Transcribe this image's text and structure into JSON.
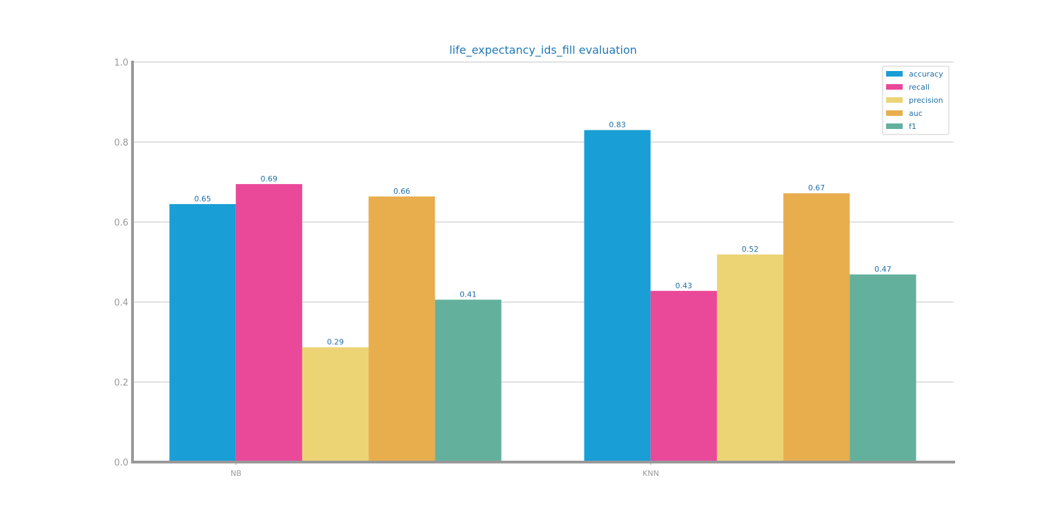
{
  "chart_data": {
    "type": "bar",
    "title": "life_expectancy_ids_fill evaluation",
    "xlabel": "",
    "ylabel": "",
    "categories": [
      "NB",
      "KNN"
    ],
    "ylim": [
      0,
      1.0
    ],
    "yticks": [
      "0.0",
      "0.2",
      "0.4",
      "0.6",
      "0.8",
      "1.0"
    ],
    "grid": "horizontal",
    "legend_position": "top-right",
    "series": [
      {
        "name": "accuracy",
        "color": "#1a9ed6",
        "values": [
          0.645,
          0.83
        ],
        "labels": [
          "0.65",
          "0.83"
        ]
      },
      {
        "name": "recall",
        "color": "#ea4899",
        "values": [
          0.695,
          0.428
        ],
        "labels": [
          "0.69",
          "0.43"
        ]
      },
      {
        "name": "precision",
        "color": "#ecd475",
        "values": [
          0.287,
          0.519
        ],
        "labels": [
          "0.29",
          "0.52"
        ]
      },
      {
        "name": "auc",
        "color": "#e8ae4e",
        "values": [
          0.664,
          0.672
        ],
        "labels": [
          "0.66",
          "0.67"
        ]
      },
      {
        "name": "f1",
        "color": "#63b19d",
        "values": [
          0.406,
          0.469
        ],
        "labels": [
          "0.41",
          "0.47"
        ]
      }
    ]
  }
}
